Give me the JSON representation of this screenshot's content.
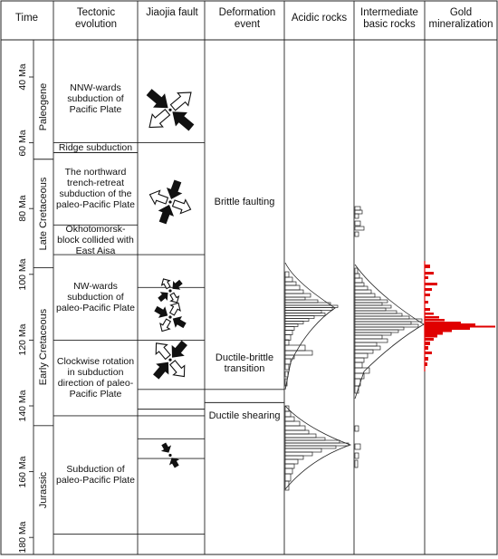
{
  "headers": {
    "time": "Time",
    "tectonic": "Tectonic evolution",
    "fault": "Jiaojia fault",
    "deformation": "Deformation event",
    "acidic": "Acidic rocks",
    "intermediate": "Intermediate basic rocks",
    "gold": "Gold mineralization"
  },
  "time_ticks": [
    {
      "ma": 40,
      "label": "40 Ma"
    },
    {
      "ma": 60,
      "label": "60 Ma"
    },
    {
      "ma": 80,
      "label": "80 Ma"
    },
    {
      "ma": 100,
      "label": "100 Ma"
    },
    {
      "ma": 120,
      "label": "120 Ma"
    },
    {
      "ma": 140,
      "label": "140 Ma"
    },
    {
      "ma": 160,
      "label": "160 Ma"
    },
    {
      "ma": 180,
      "label": "180 Ma"
    }
  ],
  "periods": [
    {
      "label": "Paleogene",
      "from": 33,
      "to": 65
    },
    {
      "label": "Late Cretaceous",
      "from": 65,
      "to": 98
    },
    {
      "label": "Early Cretaceous",
      "from": 98,
      "to": 146
    },
    {
      "label": "Jurassic",
      "from": 146,
      "to": 188
    }
  ],
  "tectonic_events": [
    {
      "text": "NNW-wards subduction of Pacific Plate",
      "from": 33,
      "to": 60
    },
    {
      "text": "Ridge subduction",
      "from": 60,
      "to": 63
    },
    {
      "text": "The northward trench-retreat subduction of the paleo-Pacific Plate",
      "from": 63,
      "to": 85
    },
    {
      "text": "Okhotomorsk-block collided with East Aisa",
      "from": 85,
      "to": 94
    },
    {
      "text": "NW-wards subduction of paleo-Pacific Plate",
      "from": 94,
      "to": 120
    },
    {
      "text": "Clockwise rotation in subduction direction of paleo-Pacific Plate",
      "from": 120,
      "to": 143
    },
    {
      "text": "Subduction of paleo-Pacific Plate",
      "from": 143,
      "to": 179
    }
  ],
  "fault_stress_regimes": [
    {
      "name": "nnw-compression-stress-icon",
      "ma": 50
    },
    {
      "name": "ne-extension-nnw-compression-stress-icon",
      "ma": 78
    },
    {
      "name": "small-extension-stress-icon",
      "ma": 105
    },
    {
      "name": "nw-compression-stress-icon",
      "ma": 113
    },
    {
      "name": "clockwise-rotation-stress-icon",
      "ma": 126
    },
    {
      "name": "nw-shear-stress-icon",
      "ma": 155
    }
  ],
  "deformation_events": [
    {
      "text": "Brittle faulting",
      "ma": 78
    },
    {
      "text": "Ductile-brittle transition",
      "ma": 127
    },
    {
      "text": "Ductile shearing",
      "ma": 143
    }
  ],
  "colors": {
    "line": "#222222",
    "gold": "#e00000"
  }
}
